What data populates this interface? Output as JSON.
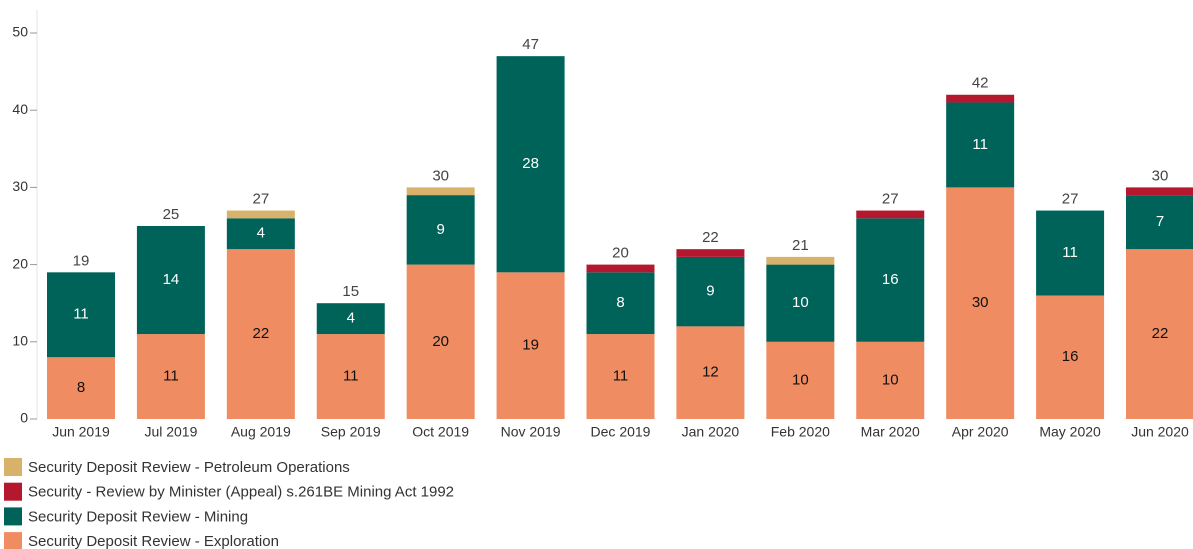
{
  "chart_data": {
    "type": "stacked-bar",
    "categories": [
      "Jun 2019",
      "Jul 2019",
      "Aug 2019",
      "Sep 2019",
      "Oct 2019",
      "Nov 2019",
      "Dec 2019",
      "Jan 2020",
      "Feb 2020",
      "Mar 2020",
      "Apr 2020",
      "May 2020",
      "Jun 2020"
    ],
    "series": [
      {
        "name": "Security Deposit Review - Exploration",
        "color": "#f08c62",
        "label_color": "#111111",
        "labels": true,
        "values": [
          8,
          11,
          22,
          11,
          20,
          19,
          11,
          12,
          10,
          10,
          30,
          16,
          22
        ]
      },
      {
        "name": "Security Deposit Review - Mining",
        "color": "#00635a",
        "label_color": "#ffffff",
        "labels": true,
        "values": [
          11,
          14,
          4,
          4,
          9,
          28,
          8,
          9,
          10,
          16,
          11,
          11,
          7
        ]
      },
      {
        "name": "Security - Review by Minister (Appeal) s.261BE Mining Act 1992",
        "color": "#b5172e",
        "labels": false,
        "values": [
          0,
          0,
          0,
          0,
          0,
          0,
          1,
          1,
          0,
          1,
          1,
          0,
          1
        ]
      },
      {
        "name": "Security Deposit Review - Petroleum Operations",
        "color": "#d8b26a",
        "labels": false,
        "values": [
          0,
          0,
          1,
          0,
          1,
          0,
          0,
          0,
          1,
          0,
          0,
          0,
          0
        ]
      }
    ],
    "totals": [
      19,
      25,
      27,
      15,
      30,
      47,
      20,
      22,
      21,
      27,
      42,
      27,
      30
    ],
    "ylim": [
      0,
      50
    ],
    "yticks": [
      0,
      10,
      20,
      30,
      40,
      50
    ],
    "grid": false,
    "legend": "bottom-left"
  }
}
